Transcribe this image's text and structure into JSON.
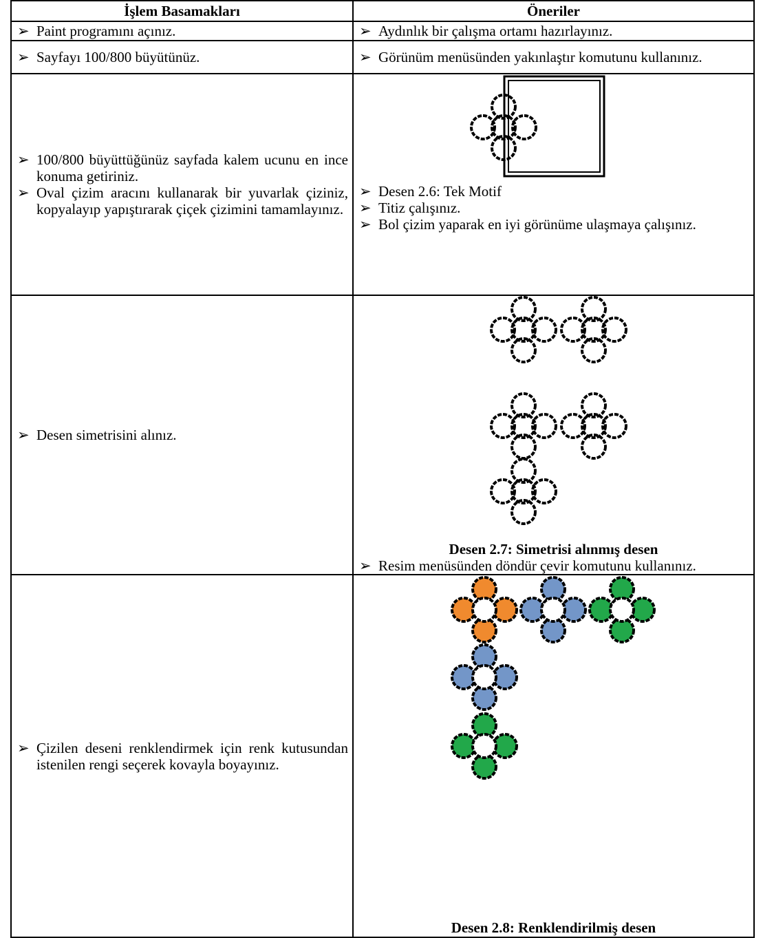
{
  "table": {
    "headers": [
      "İşlem Basamakları",
      "Öneriler"
    ],
    "rows": [
      {
        "steps": [
          "Paint programını açınız."
        ],
        "suggestions": [
          "Aydınlık bir çalışma ortamı hazırlayınız."
        ]
      },
      {
        "steps": [
          "Sayfayı 100/800 büyütünüz."
        ],
        "suggestions": [
          "Görünüm menüsünden yakınlaştır komutunu kullanınız."
        ]
      },
      {
        "steps": [
          "100/800 büyüttüğünüz sayfada kalem ucunu en ince konuma getiriniz.",
          "Oval çizim aracını kullanarak bir yuvarlak çiziniz, kopyalayıp yapıştırarak çiçek çizimini tamamlayınız."
        ],
        "suggestions": [
          "Desen 2.6: Tek Motif",
          "Titiz çalışınız.",
          "Bol çizim yaparak en iyi görünüme ulaşmaya çalışınız."
        ]
      },
      {
        "steps": [
          "Desen simetrisini alınız."
        ],
        "caption": "Desen 2.7: Simetrisi alınmış desen",
        "suggestions": [
          "Resim menüsünden döndür çevir komutunu kullanınız."
        ]
      },
      {
        "steps": [
          "Çizilen deseni renklendirmek için renk kutusundan istenilen rengi seçerek kovayla boyayınız."
        ],
        "caption": "Desen 2.8: Renklendirilmiş desen"
      }
    ]
  }
}
